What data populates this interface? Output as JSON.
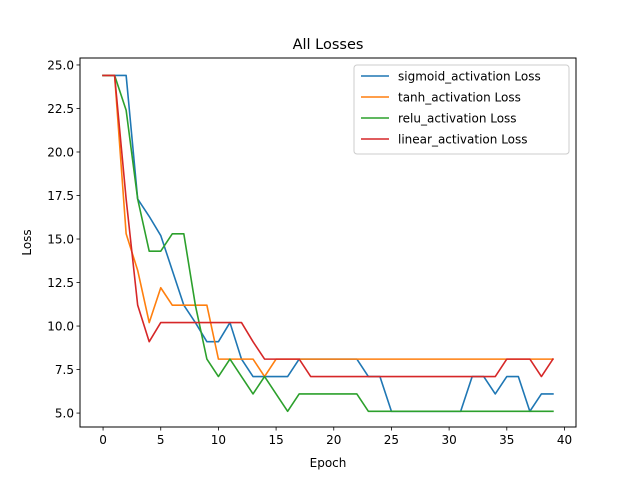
{
  "chart_data": {
    "type": "line",
    "title": "All Losses",
    "xlabel": "Epoch",
    "ylabel": "Loss",
    "xlim": [
      -2,
      41
    ],
    "ylim": [
      4.2,
      25.4
    ],
    "xticks": [
      0,
      5,
      10,
      15,
      20,
      25,
      30,
      35,
      40
    ],
    "xtick_labels": [
      "0",
      "5",
      "10",
      "15",
      "20",
      "25",
      "30",
      "35",
      "40"
    ],
    "yticks": [
      5.0,
      7.5,
      10.0,
      12.5,
      15.0,
      17.5,
      20.0,
      22.5,
      25.0
    ],
    "ytick_labels": [
      "5.0",
      "7.5",
      "10.0",
      "12.5",
      "15.0",
      "17.5",
      "20.0",
      "22.5",
      "25.0"
    ],
    "grid": false,
    "legend_position": "top-right",
    "x": [
      0,
      1,
      2,
      3,
      4,
      5,
      6,
      7,
      8,
      9,
      10,
      11,
      12,
      13,
      14,
      15,
      16,
      17,
      18,
      19,
      20,
      21,
      22,
      23,
      24,
      25,
      26,
      27,
      28,
      29,
      30,
      31,
      32,
      33,
      34,
      35,
      36,
      37,
      38,
      39
    ],
    "series": [
      {
        "name": "sigmoid_activation Loss",
        "color": "#1f77b4",
        "values": [
          24.4,
          24.4,
          24.4,
          17.3,
          16.3,
          15.2,
          13.2,
          11.2,
          10.2,
          9.1,
          9.1,
          10.2,
          8.1,
          7.1,
          7.1,
          7.1,
          7.1,
          8.1,
          8.1,
          8.1,
          8.1,
          8.1,
          8.1,
          7.1,
          7.1,
          5.1,
          5.1,
          5.1,
          5.1,
          5.1,
          5.1,
          5.1,
          7.1,
          7.1,
          6.1,
          7.1,
          7.1,
          5.1,
          6.1,
          6.1
        ]
      },
      {
        "name": "tanh_activation Loss",
        "color": "#ff7f0e",
        "values": [
          24.4,
          24.4,
          15.3,
          13.2,
          10.2,
          12.2,
          11.2,
          11.2,
          11.2,
          11.2,
          8.1,
          8.1,
          8.1,
          8.1,
          7.1,
          8.1,
          8.1,
          8.1,
          8.1,
          8.1,
          8.1,
          8.1,
          8.1,
          8.1,
          8.1,
          8.1,
          8.1,
          8.1,
          8.1,
          8.1,
          8.1,
          8.1,
          8.1,
          8.1,
          8.1,
          8.1,
          8.1,
          8.1,
          8.1,
          8.1
        ]
      },
      {
        "name": "relu_activation Loss",
        "color": "#2ca02c",
        "values": [
          24.4,
          24.4,
          22.4,
          17.3,
          14.3,
          14.3,
          15.3,
          15.3,
          11.2,
          8.1,
          7.1,
          8.1,
          7.1,
          6.1,
          7.1,
          6.1,
          5.1,
          6.1,
          6.1,
          6.1,
          6.1,
          6.1,
          6.1,
          5.1,
          5.1,
          5.1,
          5.1,
          5.1,
          5.1,
          5.1,
          5.1,
          5.1,
          5.1,
          5.1,
          5.1,
          5.1,
          5.1,
          5.1,
          5.1,
          5.1
        ]
      },
      {
        "name": "linear_activation Loss",
        "color": "#d62728",
        "values": [
          24.4,
          24.4,
          17.3,
          11.2,
          9.1,
          10.2,
          10.2,
          10.2,
          10.2,
          10.2,
          10.2,
          10.2,
          10.2,
          9.1,
          8.1,
          8.1,
          8.1,
          8.1,
          7.1,
          7.1,
          7.1,
          7.1,
          7.1,
          7.1,
          7.1,
          7.1,
          7.1,
          7.1,
          7.1,
          7.1,
          7.1,
          7.1,
          7.1,
          7.1,
          7.1,
          8.1,
          8.1,
          8.1,
          7.1,
          8.1
        ]
      }
    ]
  }
}
